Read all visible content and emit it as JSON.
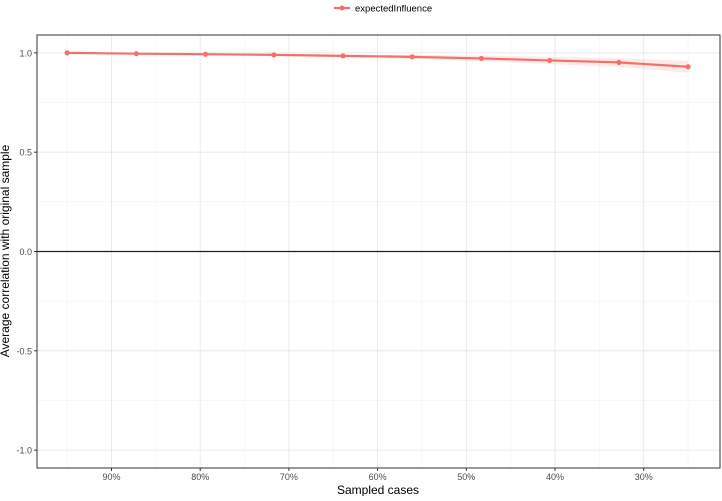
{
  "chart_data": {
    "type": "line",
    "xlabel": "Sampled cases",
    "ylabel": "Average correlation with original sample",
    "x_reversed": true,
    "xlim": [
      98.4,
      21.4
    ],
    "ylim": [
      -1.09,
      1.09
    ],
    "x_ticks": [
      90,
      80,
      70,
      60,
      50,
      40,
      30
    ],
    "x_tick_labels": [
      "90%",
      "80%",
      "70%",
      "60%",
      "50%",
      "40%",
      "30%"
    ],
    "y_ticks": [
      1.0,
      0.5,
      0.0,
      -0.5,
      -1.0
    ],
    "y_tick_labels": [
      "1.0",
      "0.5",
      "0.0",
      "-0.5",
      "-1.0"
    ],
    "grid": true,
    "legend_position": "top",
    "reference_line_y": 0,
    "series": [
      {
        "name": "expectedInfluence",
        "color": "#f0736b",
        "x": [
          95,
          87.2,
          79.4,
          71.7,
          63.9,
          56.1,
          48.3,
          40.6,
          32.8,
          25
        ],
        "y": [
          1.0,
          0.996,
          0.993,
          0.99,
          0.985,
          0.98,
          0.972,
          0.962,
          0.952,
          0.93
        ],
        "lower": [
          1.0,
          0.994,
          0.99,
          0.985,
          0.978,
          0.97,
          0.958,
          0.944,
          0.928,
          0.9
        ],
        "upper": [
          1.0,
          0.998,
          0.996,
          0.995,
          0.992,
          0.99,
          0.986,
          0.98,
          0.974,
          0.96
        ]
      }
    ]
  }
}
